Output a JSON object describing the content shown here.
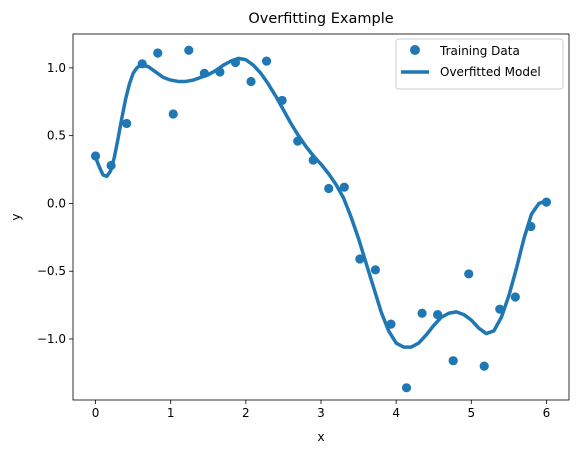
{
  "chart_data": {
    "type": "scatter",
    "title": "Overfitting Example",
    "xlabel": "x",
    "ylabel": "y",
    "xlim": [
      -0.3,
      6.3
    ],
    "ylim": [
      -1.45,
      1.25
    ],
    "xticks": [
      0,
      1,
      2,
      3,
      4,
      5,
      6
    ],
    "xtick_labels": [
      "0",
      "1",
      "2",
      "3",
      "4",
      "5",
      "6"
    ],
    "yticks": [
      1.0,
      0.5,
      0.0,
      -0.5,
      -1.0
    ],
    "ytick_labels": [
      "1.0",
      "0.5",
      "0.0",
      "−0.5",
      "−1.0"
    ],
    "grid": false,
    "legend_position": "upper right",
    "series": [
      {
        "name": "Training Data",
        "kind": "scatter",
        "color": "#1f77b4",
        "x": [
          0.0,
          0.207,
          0.414,
          0.621,
          0.828,
          1.034,
          1.241,
          1.448,
          1.655,
          1.862,
          2.069,
          2.276,
          2.483,
          2.69,
          2.897,
          3.103,
          3.31,
          3.517,
          3.724,
          3.931,
          4.138,
          4.345,
          4.552,
          4.759,
          4.966,
          5.172,
          5.379,
          5.586,
          5.793,
          6.0
        ],
        "y": [
          0.35,
          0.28,
          0.59,
          1.03,
          1.11,
          0.66,
          1.13,
          0.96,
          0.97,
          1.04,
          0.9,
          1.05,
          0.76,
          0.46,
          0.32,
          0.11,
          0.12,
          -0.41,
          -0.49,
          -0.89,
          -1.36,
          -0.81,
          -0.82,
          -1.16,
          -0.52,
          -1.2,
          -0.78,
          -0.69,
          -0.17,
          0.01
        ]
      },
      {
        "name": "Overfitted Model",
        "kind": "line",
        "color": "#1f77b4",
        "x": [
          0.0,
          0.05,
          0.1,
          0.15,
          0.2,
          0.25,
          0.3,
          0.35,
          0.4,
          0.45,
          0.5,
          0.55,
          0.6,
          0.7,
          0.8,
          0.9,
          1.0,
          1.1,
          1.2,
          1.3,
          1.4,
          1.5,
          1.6,
          1.7,
          1.8,
          1.9,
          2.0,
          2.1,
          2.2,
          2.3,
          2.4,
          2.5,
          2.6,
          2.7,
          2.8,
          2.9,
          3.0,
          3.1,
          3.2,
          3.3,
          3.4,
          3.5,
          3.6,
          3.7,
          3.8,
          3.9,
          4.0,
          4.1,
          4.2,
          4.3,
          4.4,
          4.5,
          4.6,
          4.7,
          4.8,
          4.9,
          5.0,
          5.1,
          5.2,
          5.3,
          5.4,
          5.5,
          5.6,
          5.7,
          5.8,
          5.9,
          6.0
        ],
        "y": [
          0.34,
          0.27,
          0.21,
          0.2,
          0.24,
          0.34,
          0.48,
          0.63,
          0.77,
          0.88,
          0.96,
          1.0,
          1.02,
          1.01,
          0.97,
          0.93,
          0.91,
          0.9,
          0.9,
          0.91,
          0.93,
          0.95,
          0.98,
          1.02,
          1.05,
          1.07,
          1.06,
          1.02,
          0.96,
          0.88,
          0.79,
          0.69,
          0.59,
          0.5,
          0.42,
          0.35,
          0.29,
          0.22,
          0.14,
          0.04,
          -0.1,
          -0.26,
          -0.44,
          -0.62,
          -0.8,
          -0.94,
          -1.03,
          -1.06,
          -1.06,
          -1.03,
          -0.97,
          -0.9,
          -0.84,
          -0.81,
          -0.8,
          -0.82,
          -0.86,
          -0.92,
          -0.96,
          -0.94,
          -0.84,
          -0.68,
          -0.48,
          -0.26,
          -0.08,
          0.0,
          0.02
        ]
      }
    ]
  }
}
